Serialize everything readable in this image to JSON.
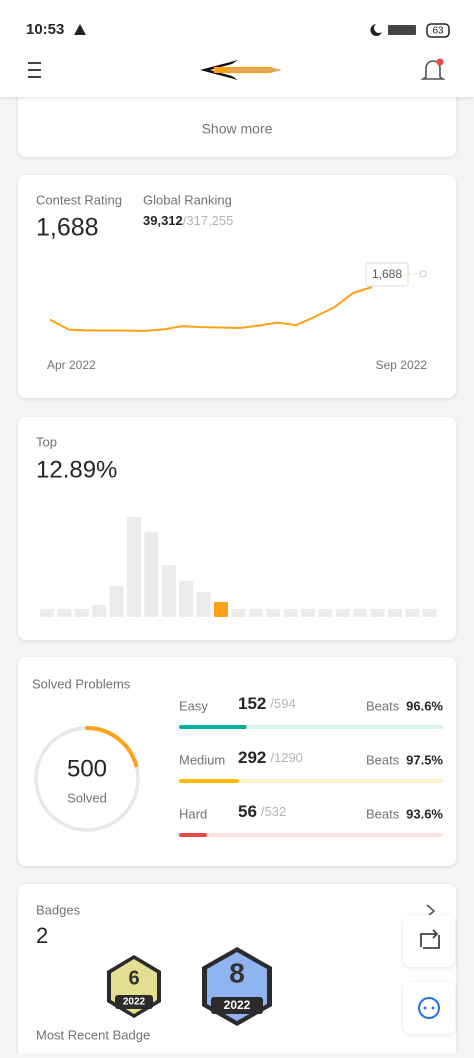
{
  "status_bar": {
    "time": "10:53",
    "battery": "63"
  },
  "skills": {
    "show_more": "Show more"
  },
  "contest": {
    "rating_label": "Contest Rating",
    "rating": "1,688",
    "ranking_label": "Global Ranking",
    "ranking": "39,312",
    "ranking_total": "/317,255",
    "chart": {
      "type": "line",
      "color": "#ffa116",
      "x_labels": [
        "Apr 2022",
        "Sep 2022"
      ],
      "values": [
        1547,
        1504,
        1500,
        1500,
        1500,
        1498,
        1505,
        1519,
        1515,
        1513,
        1511,
        1521,
        1534,
        1523,
        1560,
        1600,
        1662,
        1688
      ],
      "value_labels": [
        null,
        null,
        null,
        null,
        null,
        null,
        null,
        null,
        null,
        null,
        null,
        null,
        null,
        null,
        null,
        null,
        null,
        "1,688"
      ]
    }
  },
  "top": {
    "label": "Top",
    "value": "12.89%",
    "chart": {
      "type": "bar",
      "color": "#ebebeb",
      "highlight_color": "#ffa116",
      "highlight": 10,
      "values": [
        8,
        8,
        8,
        12,
        31,
        100,
        85,
        52,
        36,
        25,
        15,
        8,
        8,
        8,
        8,
        8,
        8,
        8,
        8,
        8,
        8,
        8,
        8
      ]
    }
  },
  "solved": {
    "title": "Solved Problems",
    "count": 500,
    "count_label": "Solved",
    "ring_color": "#ffa116",
    "levels": [
      {
        "name": "Easy",
        "solved": 152,
        "total": {
          "value": 594,
          "label": "/594"
        },
        "beats_label": "Beats",
        "beats": "96.6%",
        "color": "#00af9b",
        "track": "#d9f3ee"
      },
      {
        "name": "Medium",
        "solved": 292,
        "total": {
          "value": 1290,
          "label": "/1290"
        },
        "beats_label": "Beats",
        "beats": "97.5%",
        "color": "#ffb800",
        "track": "#fff1cc"
      },
      {
        "name": "Hard",
        "solved": 56,
        "total": {
          "value": 532,
          "label": "/532"
        },
        "beats_label": "Beats",
        "beats": "93.6%",
        "color": "#ef4743",
        "track": "#fbe1e0"
      }
    ]
  },
  "badges": {
    "title": "Badges",
    "count": "2",
    "items": [
      {
        "number": "6",
        "year": "2022"
      },
      {
        "number": "8",
        "year": "2022"
      }
    ],
    "recent_label": "Most Recent Badge"
  }
}
